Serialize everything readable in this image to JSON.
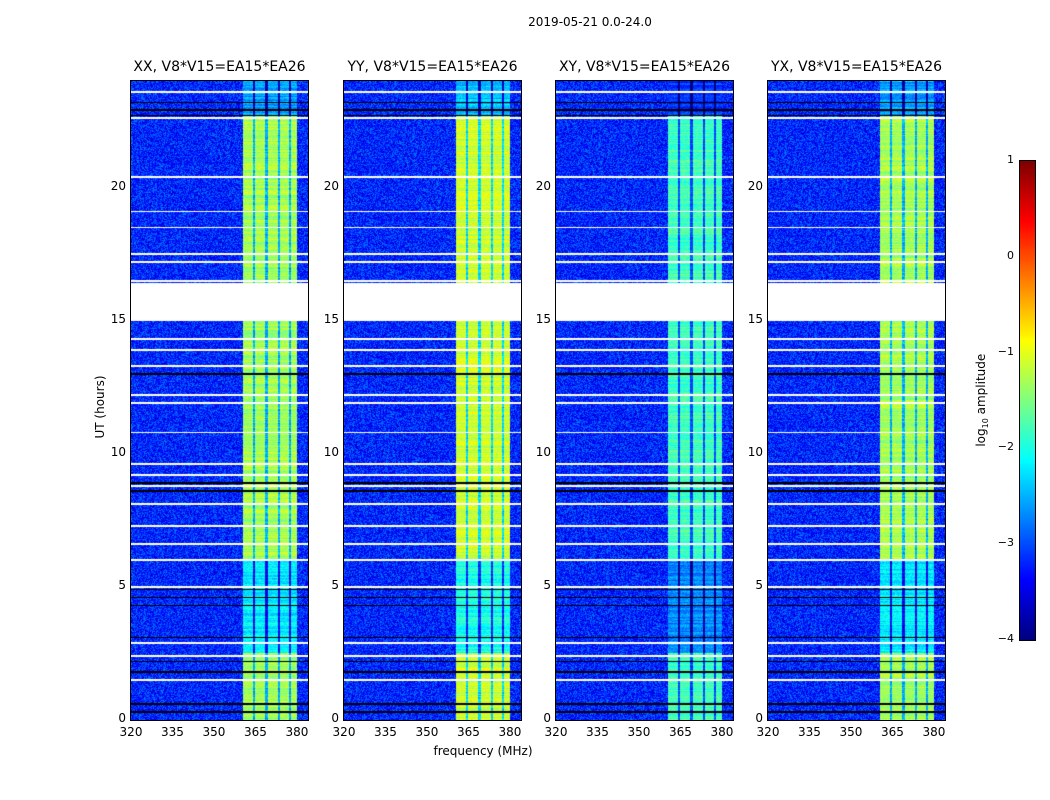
{
  "suptitle": "2019-05-21 0.0-24.0",
  "chart_data": {
    "type": "heatmap",
    "xlabel": "frequency (MHz)",
    "ylabel": "UT (hours)",
    "xlim": [
      320,
      384
    ],
    "ylim": [
      0,
      24
    ],
    "xticks": [
      "320",
      "335",
      "350",
      "365",
      "380"
    ],
    "yticks": [
      "0",
      "5",
      "10",
      "15",
      "20"
    ],
    "panels": [
      {
        "title": "XX, V8*V15=EA15*EA26",
        "band_level": -1.3
      },
      {
        "title": "YY, V8*V15=EA15*EA26",
        "band_level": -1.1
      },
      {
        "title": "XY, V8*V15=EA15*EA26",
        "band_level": -1.8
      },
      {
        "title": "YX, V8*V15=EA15*EA26",
        "band_level": -1.3
      }
    ],
    "background_level": -3.2,
    "bright_band_mhz": [
      360.5,
      380
    ],
    "band_notches_mhz": [
      364.5,
      369,
      373.5,
      377.5
    ],
    "data_gap_hours": [
      [
        15.0,
        16.4
      ]
    ],
    "flagged_rows_hours": [
      23.6,
      22.6,
      20.4,
      19.1,
      18.5,
      17.5,
      17.2,
      16.5,
      14.3,
      13.9,
      13.3,
      12.2,
      11.9,
      10.8,
      9.6,
      9.2,
      8.8,
      8.1,
      7.3,
      6.6,
      6.0,
      5.0,
      2.9,
      2.4,
      1.5
    ],
    "zero_rows_hours": [
      23.2,
      22.9,
      22.7,
      13.0,
      8.9,
      8.6,
      4.9,
      4.6,
      4.3,
      3.1,
      2.2,
      1.8,
      0.6,
      0.3
    ],
    "colorbar": {
      "label_prefix": "log",
      "label_sub": "10",
      "label_suffix": " amplitude",
      "range": [
        -4,
        1
      ],
      "ticks": [
        "1",
        "0",
        "−1",
        "−2",
        "−3",
        "−4"
      ],
      "colormap": "jet"
    }
  }
}
